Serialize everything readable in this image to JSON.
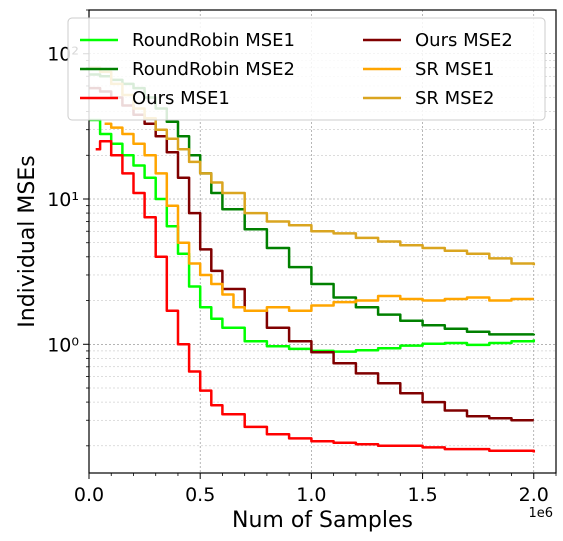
{
  "chart_data": {
    "type": "line",
    "xlabel": "Num of Samples",
    "ylabel": "Individual MSEs",
    "x_offset_label": "1e6",
    "xlim": [
      0,
      2100000
    ],
    "ylim": [
      0.13,
      200
    ],
    "yscale": "log",
    "grid": true,
    "legend_position": "top",
    "legend_columns": 2,
    "x_ticks": [
      0,
      500000,
      1000000,
      1500000,
      2000000
    ],
    "x_tick_labels": [
      "0.0",
      "0.5",
      "1.0",
      "1.5",
      "2.0"
    ],
    "y_ticks": [
      1,
      10,
      100
    ],
    "y_tick_labels": [
      "10⁰",
      "10¹",
      "10²"
    ],
    "series": [
      {
        "name": "RoundRobin MSE1",
        "color": "#00ff00",
        "x": [
          0,
          50000,
          100000,
          150000,
          200000,
          250000,
          300000,
          350000,
          400000,
          450000,
          500000,
          550000,
          600000,
          700000,
          800000,
          900000,
          1000000,
          1100000,
          1200000,
          1300000,
          1400000,
          1500000,
          1600000,
          1700000,
          1800000,
          1900000,
          2000000
        ],
        "y": [
          35,
          28,
          24,
          20,
          17,
          14,
          10,
          6.5,
          4.2,
          2.5,
          1.8,
          1.5,
          1.3,
          1.05,
          0.97,
          0.93,
          0.9,
          0.89,
          0.91,
          0.94,
          0.98,
          1.01,
          1.02,
          0.99,
          1.02,
          1.05,
          1.08
        ]
      },
      {
        "name": "RoundRobin MSE2",
        "color": "#008000",
        "x": [
          0,
          50000,
          100000,
          150000,
          200000,
          250000,
          300000,
          350000,
          400000,
          450000,
          500000,
          550000,
          600000,
          700000,
          800000,
          900000,
          1000000,
          1100000,
          1200000,
          1300000,
          1400000,
          1500000,
          1600000,
          1700000,
          1800000,
          1900000,
          2000000
        ],
        "y": [
          72,
          70,
          66,
          62,
          58,
          50,
          42,
          34,
          27,
          20,
          15,
          11,
          8.5,
          6.2,
          4.6,
          3.4,
          2.6,
          2.1,
          1.8,
          1.6,
          1.45,
          1.35,
          1.28,
          1.22,
          1.17,
          1.17,
          1.18
        ]
      },
      {
        "name": "Ours MSE1",
        "color": "#ff0000",
        "x": [
          30000,
          50000,
          100000,
          150000,
          200000,
          250000,
          300000,
          350000,
          400000,
          450000,
          500000,
          550000,
          600000,
          700000,
          800000,
          900000,
          1000000,
          1100000,
          1200000,
          1300000,
          1400000,
          1500000,
          1600000,
          1700000,
          1800000,
          1900000,
          2000000
        ],
        "y": [
          22,
          25,
          20,
          15,
          11,
          7.5,
          4,
          1.7,
          1.0,
          0.65,
          0.48,
          0.38,
          0.33,
          0.27,
          0.24,
          0.225,
          0.215,
          0.21,
          0.205,
          0.2,
          0.2,
          0.195,
          0.19,
          0.19,
          0.185,
          0.185,
          0.18
        ]
      },
      {
        "name": "Ours MSE2",
        "color": "#800000",
        "x": [
          0,
          50000,
          100000,
          150000,
          200000,
          250000,
          300000,
          350000,
          400000,
          450000,
          500000,
          550000,
          600000,
          700000,
          800000,
          900000,
          1000000,
          1100000,
          1200000,
          1300000,
          1400000,
          1500000,
          1600000,
          1700000,
          1800000,
          1900000,
          2000000
        ],
        "y": [
          58,
          55,
          50,
          44,
          38,
          33,
          27,
          21,
          14,
          8,
          4.5,
          3.2,
          2.4,
          1.7,
          1.3,
          1.05,
          0.88,
          0.74,
          0.63,
          0.54,
          0.46,
          0.4,
          0.35,
          0.32,
          0.31,
          0.3,
          0.3
        ]
      },
      {
        "name": "SR MSE1",
        "color": "#ffa500",
        "x": [
          70000,
          100000,
          150000,
          200000,
          250000,
          300000,
          350000,
          400000,
          450000,
          500000,
          550000,
          600000,
          650000,
          700000,
          800000,
          900000,
          1000000,
          1100000,
          1200000,
          1300000,
          1400000,
          1500000,
          1600000,
          1700000,
          1800000,
          1900000,
          2000000
        ],
        "y": [
          33,
          31,
          28,
          24,
          20,
          15,
          9,
          5,
          3.6,
          3.0,
          2.6,
          2.2,
          1.8,
          1.7,
          1.8,
          1.7,
          1.85,
          1.95,
          2.0,
          2.15,
          2.05,
          2.0,
          2.05,
          2.1,
          2.0,
          2.05,
          2.05
        ]
      },
      {
        "name": "SR MSE2",
        "color": "#daa520",
        "x": [
          0,
          50000,
          100000,
          150000,
          200000,
          250000,
          300000,
          350000,
          400000,
          450000,
          500000,
          550000,
          600000,
          700000,
          800000,
          900000,
          1000000,
          1100000,
          1200000,
          1300000,
          1400000,
          1500000,
          1600000,
          1700000,
          1800000,
          1900000,
          2000000
        ],
        "y": [
          80,
          75,
          62,
          52,
          42,
          36,
          30,
          26,
          22,
          18,
          15,
          13,
          11,
          8,
          7,
          6.6,
          6.0,
          5.8,
          5.4,
          5.1,
          4.8,
          4.6,
          4.4,
          4.2,
          3.9,
          3.6,
          3.5
        ]
      }
    ]
  }
}
